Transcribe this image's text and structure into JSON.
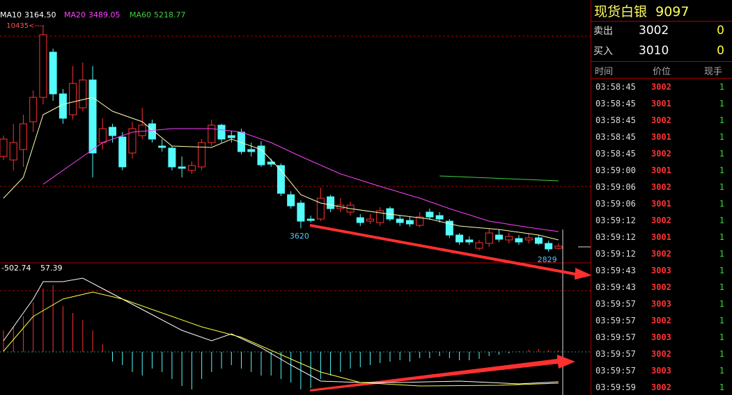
{
  "chart_data": {
    "type": "candlestick",
    "legend": [
      {
        "name": "MA10",
        "value": {
          "value": 3164.5,
          "label": "3164.50"
        },
        "color": "#ffffff"
      },
      {
        "name": "MA20",
        "value": 3489.05,
        "color": "#ff40ff"
      },
      {
        "name": "MA60",
        "value": 5218.77,
        "color": "#40d040"
      }
    ],
    "ylim": [
      2455,
      11300
    ],
    "up_color": "#ff3232",
    "down_color": "#54fcfc",
    "candles": {
      "open": [
        6035,
        5918,
        6269,
        7205,
        8024,
        9545,
        8141,
        7439,
        7673,
        8609,
        6503,
        7018,
        6690,
        6152,
        6737,
        7135,
        6386,
        6316,
        5684,
        5567,
        5684,
        6503,
        7088,
        6737,
        6854,
        6269,
        6386,
        5848,
        5731,
        4748,
        4467,
        3929,
        3929,
        4678,
        4280,
        4163,
        3976,
        3859,
        3812,
        4280,
        3929,
        3882,
        3718,
        4163,
        4046,
        3859,
        3391,
        3227,
        2946,
        3110,
        3391,
        3227,
        3274,
        3227,
        3297,
        3110,
        2946
      ],
      "close": [
        6620,
        6503,
        7135,
        8024,
        10130,
        8141,
        7322,
        8492,
        8609,
        6152,
        6971,
        6737,
        5684,
        6971,
        7088,
        6620,
        6339,
        5684,
        5637,
        5731,
        6503,
        7088,
        6620,
        6667,
        6199,
        6199,
        5754,
        5777,
        4795,
        4373,
        3859,
        3882,
        4631,
        4280,
        4397,
        4397,
        3812,
        3929,
        4210,
        3929,
        3812,
        3765,
        3999,
        3999,
        3929,
        3391,
        3157,
        3157,
        3133,
        3461,
        3250,
        3344,
        3157,
        3297,
        3110,
        2923,
        3016
      ],
      "high": [
        6737,
        7135,
        7439,
        8258,
        10435,
        9662,
        8305,
        9077,
        9194,
        9077,
        7322,
        7135,
        6854,
        7205,
        7673,
        7275,
        6620,
        6386,
        6035,
        5871,
        6620,
        7275,
        7135,
        6901,
        6971,
        6503,
        6550,
        5965,
        5801,
        4865,
        4561,
        4046,
        4982,
        4748,
        4631,
        4514,
        4093,
        4093,
        4327,
        4350,
        4046,
        3999,
        4163,
        4280,
        4163,
        3929,
        3461,
        3344,
        3227,
        3625,
        3578,
        3461,
        3391,
        3461,
        3391,
        3203,
        3110
      ],
      "low": [
        5918,
        5567,
        5684,
        6854,
        7790,
        7907,
        7135,
        7275,
        7556,
        5333,
        6269,
        6503,
        5567,
        5965,
        6620,
        6503,
        6199,
        5567,
        5333,
        5450,
        5567,
        6386,
        6503,
        6503,
        6105,
        6035,
        5684,
        5684,
        4701,
        4280,
        3620,
        3812,
        3859,
        4163,
        4163,
        4046,
        3695,
        3765,
        3695,
        3859,
        3695,
        3671,
        3648,
        3905,
        3812,
        3297,
        3063,
        3063,
        2876,
        2993,
        3157,
        3110,
        3063,
        3110,
        3063,
        2829,
        2899
      ]
    },
    "moving_averages": [
      {
        "name": "MA10",
        "color": "#ffffb0",
        "x": [
          0,
          2,
          4,
          6,
          9,
          11,
          14,
          17,
          21,
          23,
          26,
          28,
          30,
          32,
          35,
          39,
          43,
          46,
          50,
          54,
          56
        ],
        "values": [
          4631,
          5333,
          7439,
          7790,
          8024,
          7556,
          7205,
          6386,
          6339,
          6620,
          6269,
          5567,
          4748,
          4467,
          4280,
          4093,
          3929,
          3695,
          3578,
          3391,
          3227
        ]
      },
      {
        "name": "MA20",
        "color": "#ff40ff",
        "x": [
          4,
          7,
          10,
          13,
          17,
          21,
          24,
          27,
          30,
          34,
          38,
          42,
          45,
          49,
          53,
          56
        ],
        "values": [
          5099,
          5801,
          6503,
          6854,
          6971,
          6971,
          6854,
          6503,
          6035,
          5450,
          5029,
          4631,
          4280,
          3859,
          3648,
          3508
        ]
      },
      {
        "name": "MA60",
        "color": "#40d040",
        "x": [
          44,
          56
        ],
        "values": [
          5380,
          5216
        ]
      }
    ],
    "annotations": [
      {
        "value": 10435,
        "label": "10435<----"
      }
    ],
    "macd": {
      "readouts": [
        -502.74,
        57.39
      ],
      "ylim": [
        -248,
        512
      ],
      "histogram": [
        124,
        144,
        204,
        284,
        364,
        384,
        264,
        224,
        184,
        124,
        44,
        -56,
        -76,
        -116,
        -136,
        -96,
        -116,
        -156,
        -196,
        -216,
        -156,
        -116,
        -96,
        -76,
        -96,
        -116,
        -136,
        -136,
        -156,
        -176,
        -216,
        -208,
        -156,
        -136,
        -116,
        -96,
        -88,
        -76,
        -64,
        -56,
        -48,
        -56,
        -36,
        -36,
        -24,
        -36,
        -48,
        -48,
        -40,
        -24,
        -16,
        -8,
        4,
        12,
        16,
        12,
        8
      ],
      "lines": [
        {
          "color": "#ffffff",
          "x": [
            0,
            3,
            4,
            6,
            8,
            10,
            14,
            18,
            21,
            23,
            26,
            29,
            32,
            36,
            40,
            46,
            52,
            56
          ],
          "values": [
            64,
            304,
            404,
            404,
            424,
            364,
            244,
            124,
            64,
            104,
            24,
            -76,
            -168,
            -176,
            -176,
            -168,
            -184,
            -172
          ]
        },
        {
          "color": "#ffff40",
          "x": [
            0,
            3,
            6,
            9,
            12,
            16,
            20,
            24,
            28,
            32,
            36,
            42,
            50,
            56
          ],
          "values": [
            4,
            204,
            304,
            344,
            304,
            224,
            144,
            84,
            -16,
            -116,
            -176,
            -196,
            -192,
            -180
          ]
        }
      ]
    }
  },
  "quote": {
    "name": "现货白银",
    "code": 9097,
    "sell": {
      "label": "卖出",
      "price": 3002,
      "volume": 0
    },
    "buy": {
      "label": "买入",
      "price": 3010,
      "volume": 0
    },
    "headers": [
      "时间",
      "价位",
      "现手"
    ],
    "trades": [
      [
        "03:58:45",
        3002,
        1
      ],
      [
        "03:58:45",
        3001,
        1
      ],
      [
        "03:58:45",
        3002,
        1
      ],
      [
        "03:58:45",
        3001,
        1
      ],
      [
        "03:58:45",
        3002,
        1
      ],
      [
        "03:59:00",
        3001,
        1
      ],
      [
        "03:59:06",
        3002,
        1
      ],
      [
        "03:59:06",
        3001,
        1
      ],
      [
        "03:59:12",
        3002,
        1
      ],
      [
        "03:59:12",
        3001,
        1
      ],
      [
        "03:59:12",
        3002,
        1
      ],
      [
        "03:59:43",
        3003,
        1
      ],
      [
        "03:59:43",
        3002,
        1
      ],
      [
        "03:59:57",
        3003,
        1
      ],
      [
        "03:59:57",
        3002,
        1
      ],
      [
        "03:59:57",
        3003,
        1
      ],
      [
        "03:59:57",
        3002,
        1
      ],
      [
        "03:59:57",
        3003,
        1
      ],
      [
        "03:59:59",
        3002,
        1
      ]
    ]
  }
}
